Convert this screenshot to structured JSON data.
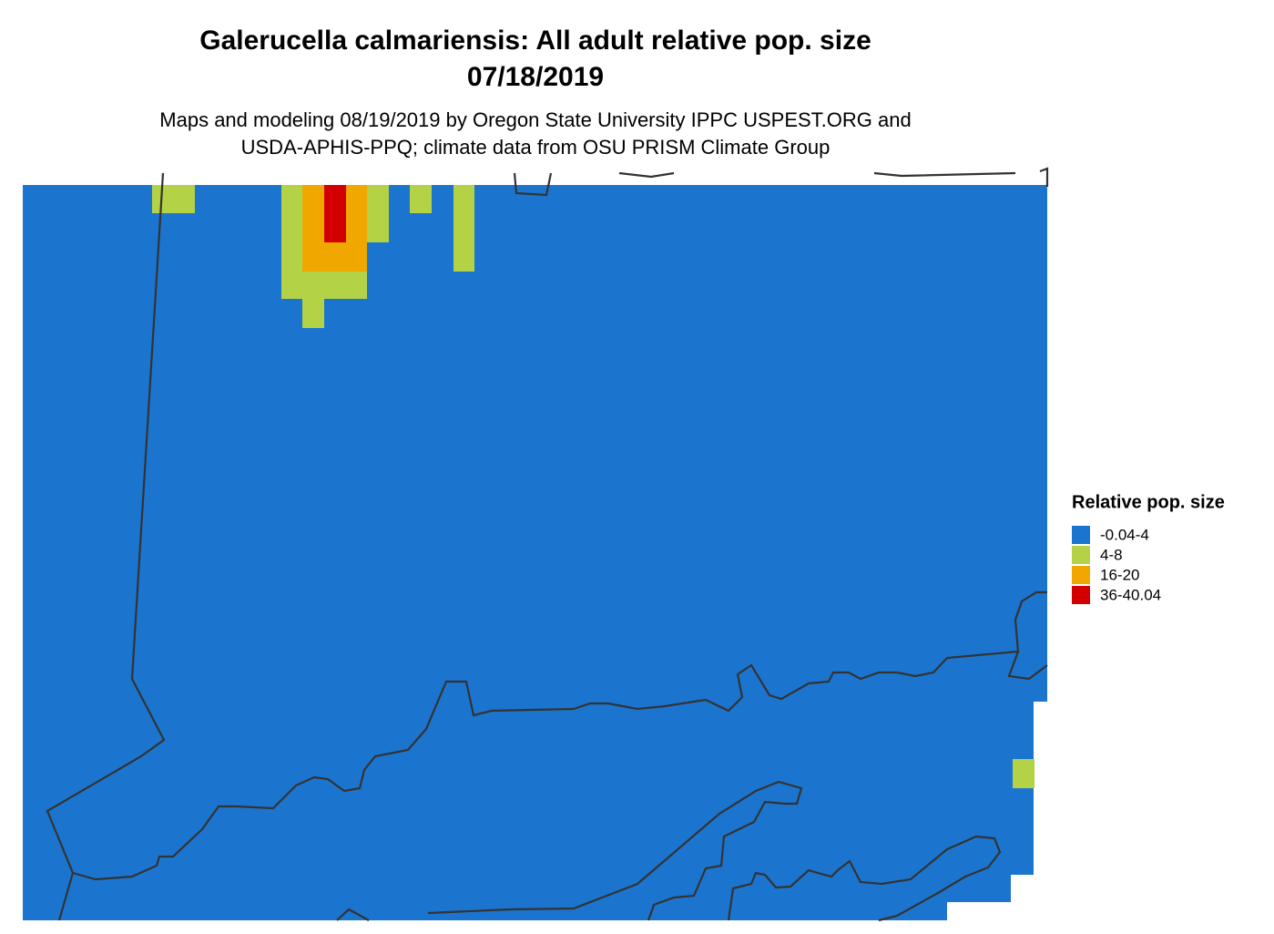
{
  "title": "Galerucella calmariensis: All adult relative pop. size",
  "date": "07/18/2019",
  "subtitle": [
    "Maps and modeling 08/19/2019 by Oregon State University IPPC USPEST.ORG and",
    "USDA-APHIS-PPQ; climate data from OSU PRISM Climate Group"
  ],
  "legend": {
    "title": "Relative pop. size",
    "items": [
      {
        "label": "-0.04-4",
        "color": "#1b75cf"
      },
      {
        "label": "4-8",
        "color": "#b3d245"
      },
      {
        "label": "16-20",
        "color": "#f0a800"
      },
      {
        "label": "36-40.04",
        "color": "#d20000"
      }
    ]
  }
}
